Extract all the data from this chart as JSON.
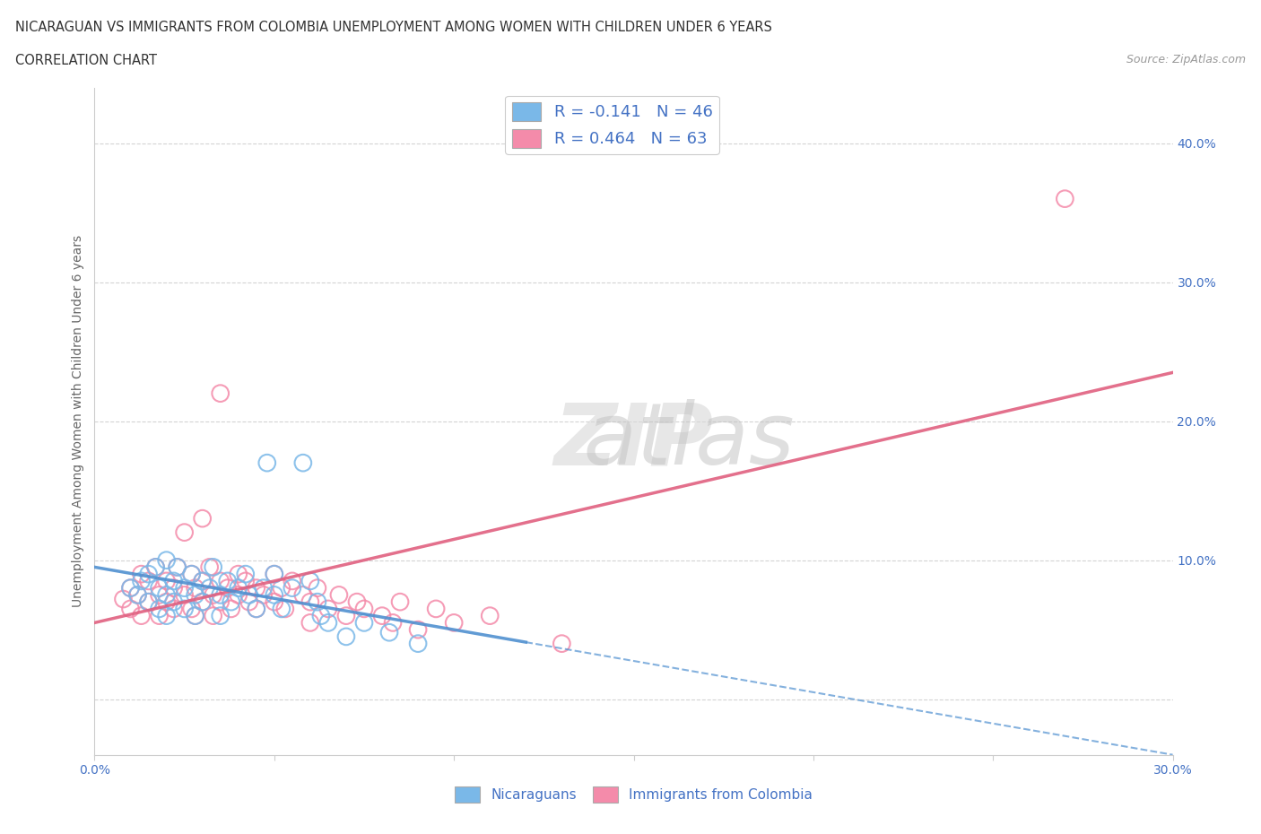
{
  "title_line1": "NICARAGUAN VS IMMIGRANTS FROM COLOMBIA UNEMPLOYMENT AMONG WOMEN WITH CHILDREN UNDER 6 YEARS",
  "title_line2": "CORRELATION CHART",
  "source_text": "Source: ZipAtlas.com",
  "ylabel": "Unemployment Among Women with Children Under 6 years",
  "xmin": 0.0,
  "xmax": 0.3,
  "ymin": -0.04,
  "ymax": 0.44,
  "yticks": [
    0.0,
    0.1,
    0.2,
    0.3,
    0.4
  ],
  "xticks": [
    0.0,
    0.05,
    0.1,
    0.15,
    0.2,
    0.25,
    0.3
  ],
  "blue_R": -0.141,
  "blue_N": 46,
  "pink_R": 0.464,
  "pink_N": 63,
  "blue_color": "#7ab8e8",
  "pink_color": "#f48baa",
  "blue_scatter": [
    [
      0.01,
      0.08
    ],
    [
      0.012,
      0.075
    ],
    [
      0.013,
      0.085
    ],
    [
      0.015,
      0.09
    ],
    [
      0.015,
      0.07
    ],
    [
      0.017,
      0.095
    ],
    [
      0.018,
      0.08
    ],
    [
      0.018,
      0.065
    ],
    [
      0.02,
      0.1
    ],
    [
      0.02,
      0.075
    ],
    [
      0.02,
      0.06
    ],
    [
      0.022,
      0.085
    ],
    [
      0.022,
      0.07
    ],
    [
      0.023,
      0.095
    ],
    [
      0.025,
      0.08
    ],
    [
      0.025,
      0.065
    ],
    [
      0.027,
      0.09
    ],
    [
      0.028,
      0.075
    ],
    [
      0.028,
      0.06
    ],
    [
      0.03,
      0.085
    ],
    [
      0.03,
      0.07
    ],
    [
      0.032,
      0.08
    ],
    [
      0.033,
      0.095
    ],
    [
      0.035,
      0.075
    ],
    [
      0.035,
      0.06
    ],
    [
      0.037,
      0.085
    ],
    [
      0.038,
      0.07
    ],
    [
      0.04,
      0.08
    ],
    [
      0.042,
      0.09
    ],
    [
      0.043,
      0.075
    ],
    [
      0.045,
      0.065
    ],
    [
      0.047,
      0.08
    ],
    [
      0.048,
      0.17
    ],
    [
      0.05,
      0.09
    ],
    [
      0.05,
      0.075
    ],
    [
      0.052,
      0.065
    ],
    [
      0.055,
      0.08
    ],
    [
      0.058,
      0.17
    ],
    [
      0.06,
      0.085
    ],
    [
      0.062,
      0.07
    ],
    [
      0.063,
      0.06
    ],
    [
      0.065,
      0.055
    ],
    [
      0.07,
      0.045
    ],
    [
      0.075,
      0.055
    ],
    [
      0.082,
      0.048
    ],
    [
      0.09,
      0.04
    ]
  ],
  "pink_scatter": [
    [
      0.008,
      0.072
    ],
    [
      0.01,
      0.065
    ],
    [
      0.01,
      0.08
    ],
    [
      0.012,
      0.075
    ],
    [
      0.013,
      0.09
    ],
    [
      0.013,
      0.06
    ],
    [
      0.015,
      0.085
    ],
    [
      0.015,
      0.07
    ],
    [
      0.017,
      0.095
    ],
    [
      0.018,
      0.075
    ],
    [
      0.018,
      0.06
    ],
    [
      0.02,
      0.085
    ],
    [
      0.02,
      0.07
    ],
    [
      0.022,
      0.08
    ],
    [
      0.022,
      0.065
    ],
    [
      0.023,
      0.095
    ],
    [
      0.025,
      0.12
    ],
    [
      0.025,
      0.075
    ],
    [
      0.027,
      0.09
    ],
    [
      0.027,
      0.065
    ],
    [
      0.028,
      0.08
    ],
    [
      0.028,
      0.06
    ],
    [
      0.03,
      0.13
    ],
    [
      0.03,
      0.085
    ],
    [
      0.03,
      0.07
    ],
    [
      0.032,
      0.095
    ],
    [
      0.033,
      0.075
    ],
    [
      0.033,
      0.06
    ],
    [
      0.035,
      0.22
    ],
    [
      0.035,
      0.085
    ],
    [
      0.035,
      0.07
    ],
    [
      0.037,
      0.08
    ],
    [
      0.038,
      0.065
    ],
    [
      0.04,
      0.09
    ],
    [
      0.04,
      0.075
    ],
    [
      0.042,
      0.085
    ],
    [
      0.043,
      0.07
    ],
    [
      0.045,
      0.08
    ],
    [
      0.045,
      0.065
    ],
    [
      0.047,
      0.075
    ],
    [
      0.05,
      0.09
    ],
    [
      0.05,
      0.07
    ],
    [
      0.052,
      0.08
    ],
    [
      0.053,
      0.065
    ],
    [
      0.055,
      0.085
    ],
    [
      0.058,
      0.075
    ],
    [
      0.06,
      0.07
    ],
    [
      0.06,
      0.055
    ],
    [
      0.062,
      0.08
    ],
    [
      0.065,
      0.065
    ],
    [
      0.068,
      0.075
    ],
    [
      0.07,
      0.06
    ],
    [
      0.073,
      0.07
    ],
    [
      0.075,
      0.065
    ],
    [
      0.08,
      0.06
    ],
    [
      0.083,
      0.055
    ],
    [
      0.085,
      0.07
    ],
    [
      0.09,
      0.05
    ],
    [
      0.095,
      0.065
    ],
    [
      0.1,
      0.055
    ],
    [
      0.11,
      0.06
    ],
    [
      0.13,
      0.04
    ],
    [
      0.27,
      0.36
    ]
  ],
  "watermark_zip": "ZIP",
  "watermark_atlas": "atlas",
  "legend_blue_label": "R = -0.141   N = 46",
  "legend_pink_label": "R = 0.464   N = 63",
  "legend_blue_text": "Nicaraguans",
  "legend_pink_text": "Immigrants from Colombia",
  "grid_color": "#d0d0d0",
  "background_color": "#ffffff",
  "title_color": "#333333",
  "axis_label_color": "#666666",
  "tick_color": "#4472c4",
  "legend_text_color": "#4472c4",
  "blue_line_solid_end": 0.12,
  "pink_line_intercept": 0.055,
  "pink_line_slope": 0.6,
  "blue_line_intercept": 0.095,
  "blue_line_slope": -0.45
}
